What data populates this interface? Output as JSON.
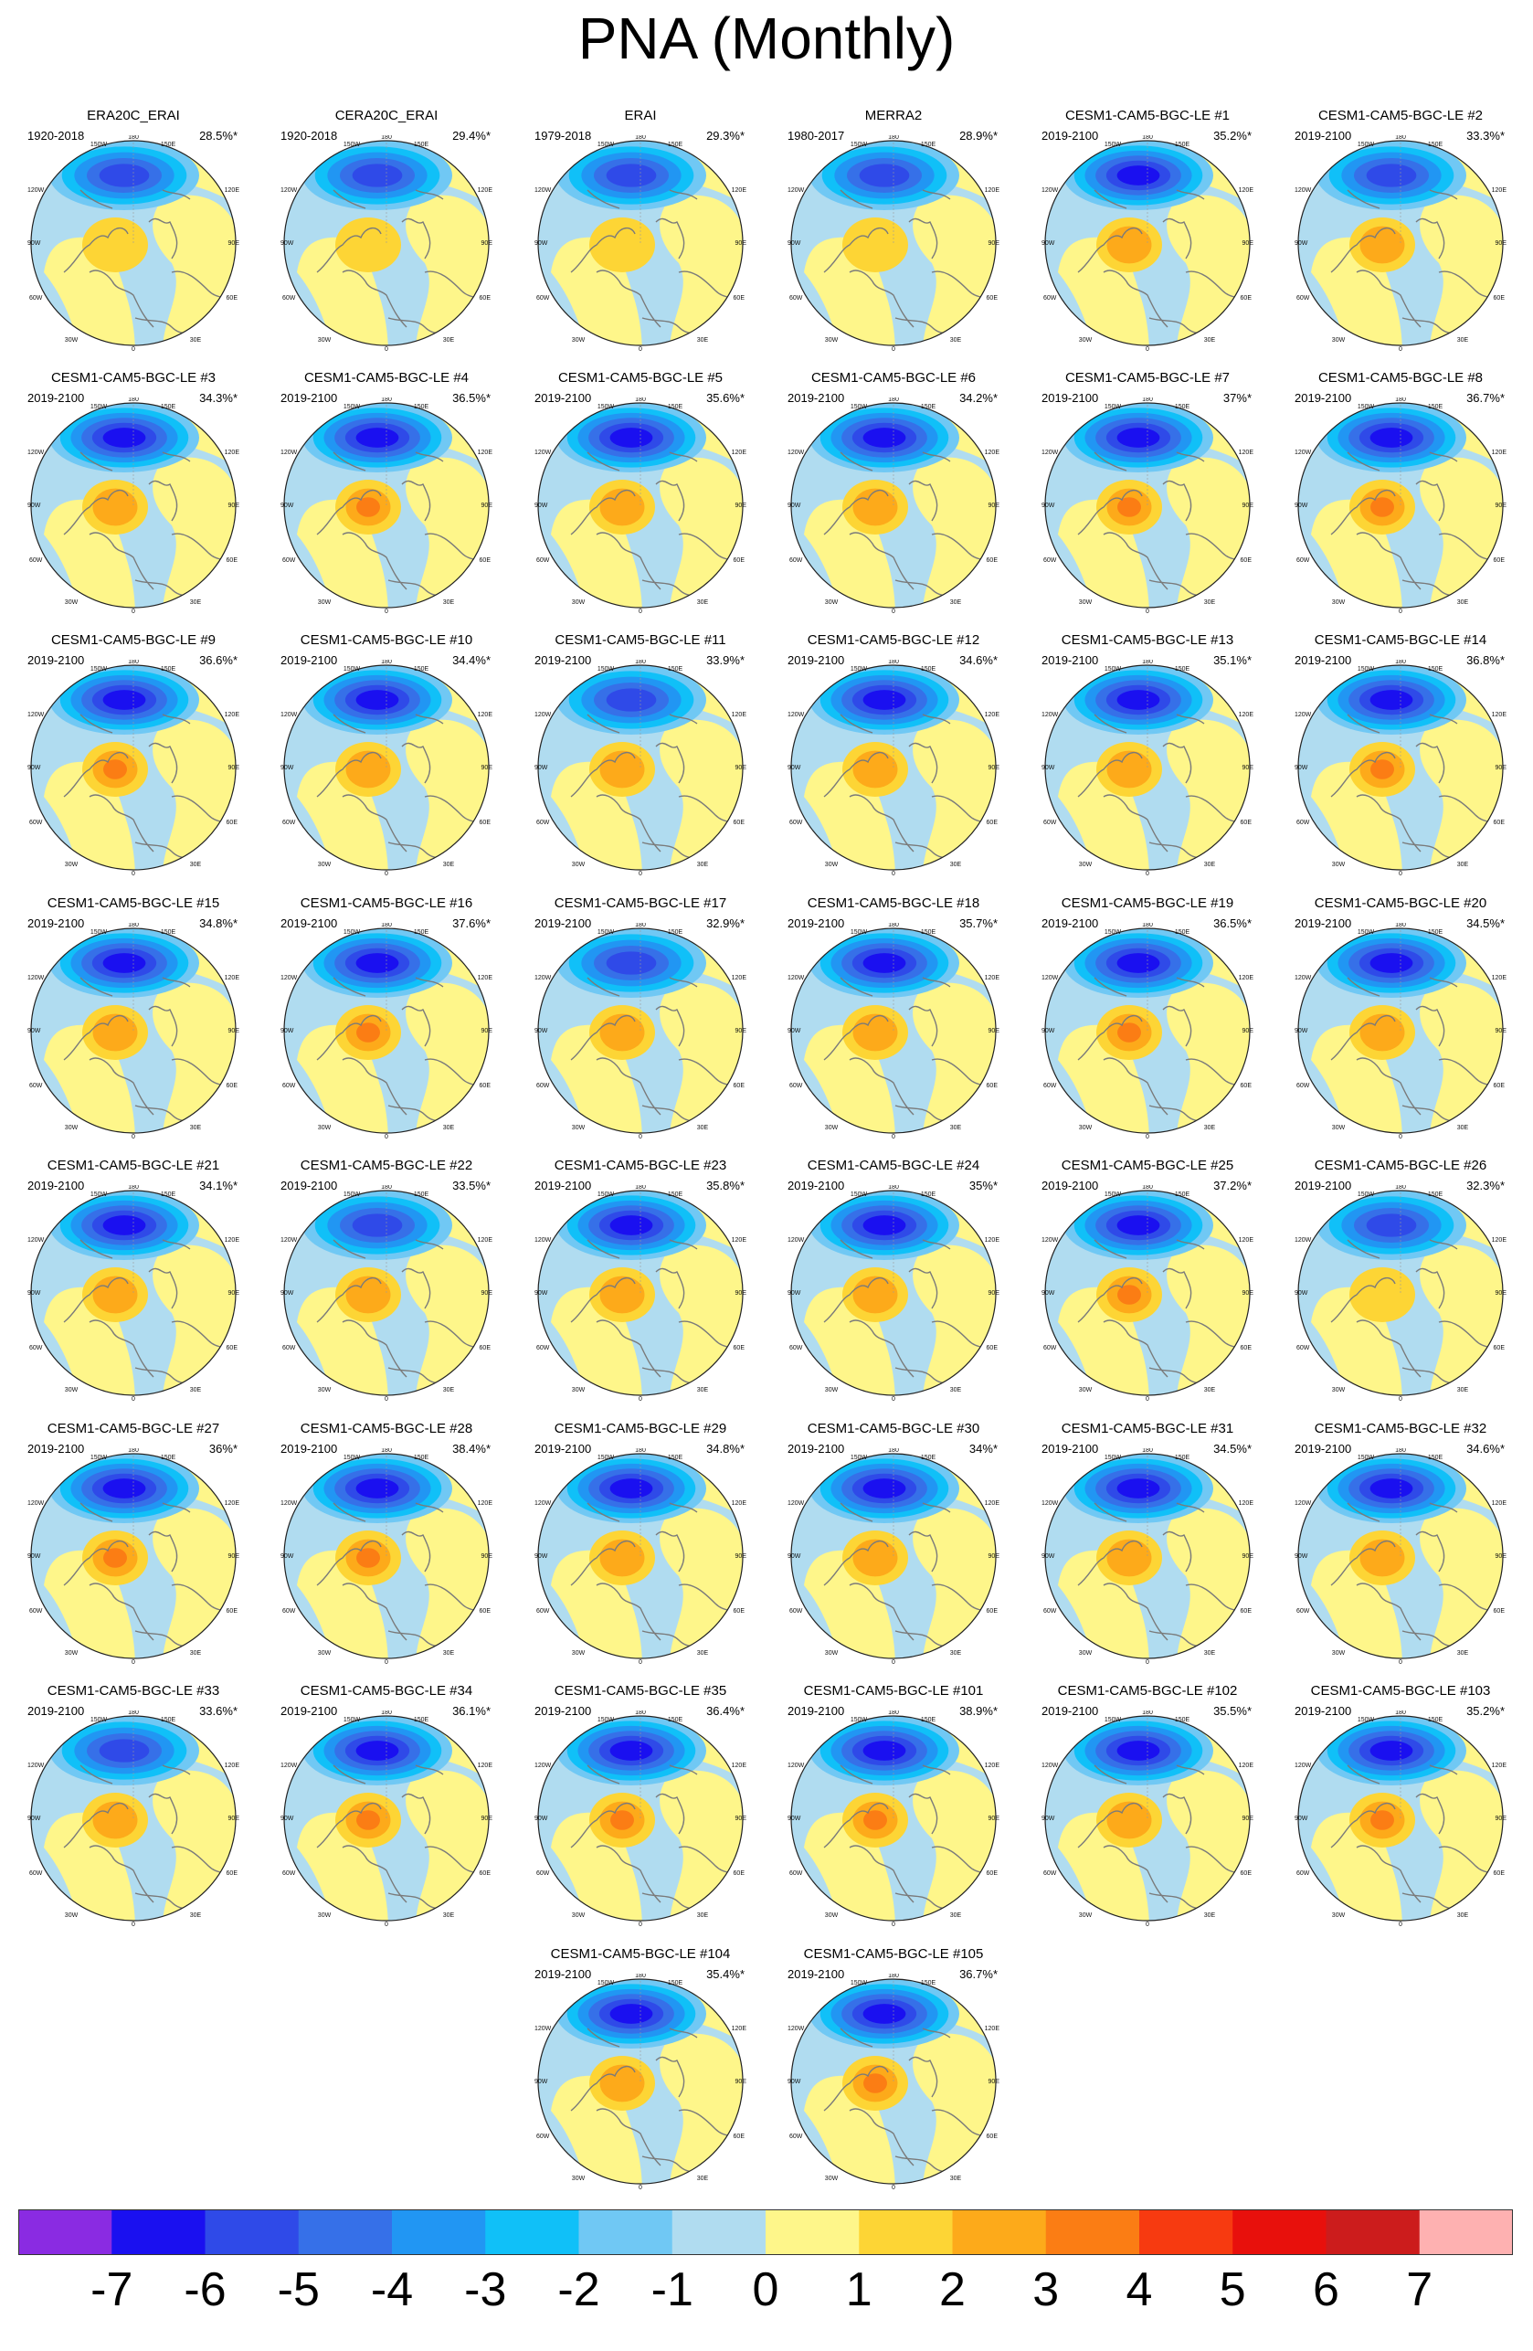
{
  "title": "PNA (Monthly)",
  "map_labels": {
    "top": "180",
    "top_left": "150W",
    "top_right": "150E",
    "upper_left": "120W",
    "upper_right": "120E",
    "left": "90W",
    "right": "90E",
    "lower_left": "60W",
    "lower_right": "60E",
    "bottom_left": "30W",
    "bottom_right": "30E",
    "bottom": "0"
  },
  "panels": [
    {
      "title": "ERA20C_ERAI",
      "period": "1920-2018",
      "pct": "28.5%*",
      "strength": 0.8
    },
    {
      "title": "CERA20C_ERAI",
      "period": "1920-2018",
      "pct": "29.4%*",
      "strength": 0.82
    },
    {
      "title": "ERAI",
      "period": "1979-2018",
      "pct": "29.3%*",
      "strength": 0.82
    },
    {
      "title": "MERRA2",
      "period": "1980-2017",
      "pct": "28.9%*",
      "strength": 0.8
    },
    {
      "title": "CESM1-CAM5-BGC-LE #1",
      "period": "2019-2100",
      "pct": "35.2%*",
      "strength": 0.95
    },
    {
      "title": "CESM1-CAM5-BGC-LE #2",
      "period": "2019-2100",
      "pct": "33.3%*",
      "strength": 0.9
    },
    {
      "title": "CESM1-CAM5-BGC-LE #3",
      "period": "2019-2100",
      "pct": "34.3%*",
      "strength": 0.93
    },
    {
      "title": "CESM1-CAM5-BGC-LE #4",
      "period": "2019-2100",
      "pct": "36.5%*",
      "strength": 0.97
    },
    {
      "title": "CESM1-CAM5-BGC-LE #5",
      "period": "2019-2100",
      "pct": "35.6%*",
      "strength": 0.95
    },
    {
      "title": "CESM1-CAM5-BGC-LE #6",
      "period": "2019-2100",
      "pct": "34.2%*",
      "strength": 0.93
    },
    {
      "title": "CESM1-CAM5-BGC-LE #7",
      "period": "2019-2100",
      "pct": "37%*",
      "strength": 1.0
    },
    {
      "title": "CESM1-CAM5-BGC-LE #8",
      "period": "2019-2100",
      "pct": "36.7%*",
      "strength": 1.0
    },
    {
      "title": "CESM1-CAM5-BGC-LE #9",
      "period": "2019-2100",
      "pct": "36.6%*",
      "strength": 0.98
    },
    {
      "title": "CESM1-CAM5-BGC-LE #10",
      "period": "2019-2100",
      "pct": "34.4%*",
      "strength": 0.93
    },
    {
      "title": "CESM1-CAM5-BGC-LE #11",
      "period": "2019-2100",
      "pct": "33.9%*",
      "strength": 0.92
    },
    {
      "title": "CESM1-CAM5-BGC-LE #12",
      "period": "2019-2100",
      "pct": "34.6%*",
      "strength": 0.94
    },
    {
      "title": "CESM1-CAM5-BGC-LE #13",
      "period": "2019-2100",
      "pct": "35.1%*",
      "strength": 0.95
    },
    {
      "title": "CESM1-CAM5-BGC-LE #14",
      "period": "2019-2100",
      "pct": "36.8%*",
      "strength": 0.98
    },
    {
      "title": "CESM1-CAM5-BGC-LE #15",
      "period": "2019-2100",
      "pct": "34.8%*",
      "strength": 0.94
    },
    {
      "title": "CESM1-CAM5-BGC-LE #16",
      "period": "2019-2100",
      "pct": "37.6%*",
      "strength": 1.0
    },
    {
      "title": "CESM1-CAM5-BGC-LE #17",
      "period": "2019-2100",
      "pct": "32.9%*",
      "strength": 0.9
    },
    {
      "title": "CESM1-CAM5-BGC-LE #18",
      "period": "2019-2100",
      "pct": "35.7%*",
      "strength": 0.96
    },
    {
      "title": "CESM1-CAM5-BGC-LE #19",
      "period": "2019-2100",
      "pct": "36.5%*",
      "strength": 0.98
    },
    {
      "title": "CESM1-CAM5-BGC-LE #20",
      "period": "2019-2100",
      "pct": "34.5%*",
      "strength": 0.93
    },
    {
      "title": "CESM1-CAM5-BGC-LE #21",
      "period": "2019-2100",
      "pct": "34.1%*",
      "strength": 0.93
    },
    {
      "title": "CESM1-CAM5-BGC-LE #22",
      "period": "2019-2100",
      "pct": "33.5%*",
      "strength": 0.92
    },
    {
      "title": "CESM1-CAM5-BGC-LE #23",
      "period": "2019-2100",
      "pct": "35.8%*",
      "strength": 0.96
    },
    {
      "title": "CESM1-CAM5-BGC-LE #24",
      "period": "2019-2100",
      "pct": "35%*",
      "strength": 0.95
    },
    {
      "title": "CESM1-CAM5-BGC-LE #25",
      "period": "2019-2100",
      "pct": "37.2%*",
      "strength": 0.99
    },
    {
      "title": "CESM1-CAM5-BGC-LE #26",
      "period": "2019-2100",
      "pct": "32.3%*",
      "strength": 0.88
    },
    {
      "title": "CESM1-CAM5-BGC-LE #27",
      "period": "2019-2100",
      "pct": "36%*",
      "strength": 0.97
    },
    {
      "title": "CESM1-CAM5-BGC-LE #28",
      "period": "2019-2100",
      "pct": "38.4%*",
      "strength": 1.0
    },
    {
      "title": "CESM1-CAM5-BGC-LE #29",
      "period": "2019-2100",
      "pct": "34.8%*",
      "strength": 0.94
    },
    {
      "title": "CESM1-CAM5-BGC-LE #30",
      "period": "2019-2100",
      "pct": "34%*",
      "strength": 0.93
    },
    {
      "title": "CESM1-CAM5-BGC-LE #31",
      "period": "2019-2100",
      "pct": "34.5%*",
      "strength": 0.93
    },
    {
      "title": "CESM1-CAM5-BGC-LE #32",
      "period": "2019-2100",
      "pct": "34.6%*",
      "strength": 0.94
    },
    {
      "title": "CESM1-CAM5-BGC-LE #33",
      "period": "2019-2100",
      "pct": "33.6%*",
      "strength": 0.92
    },
    {
      "title": "CESM1-CAM5-BGC-LE #34",
      "period": "2019-2100",
      "pct": "36.1%*",
      "strength": 0.97
    },
    {
      "title": "CESM1-CAM5-BGC-LE #35",
      "period": "2019-2100",
      "pct": "36.4%*",
      "strength": 0.97
    },
    {
      "title": "CESM1-CAM5-BGC-LE #101",
      "period": "2019-2100",
      "pct": "38.9%*",
      "strength": 1.0
    },
    {
      "title": "CESM1-CAM5-BGC-LE #102",
      "period": "2019-2100",
      "pct": "35.5%*",
      "strength": 0.96
    },
    {
      "title": "CESM1-CAM5-BGC-LE #103",
      "period": "2019-2100",
      "pct": "35.2%*",
      "strength": 0.98
    },
    {
      "title": "CESM1-CAM5-BGC-LE #104",
      "period": "2019-2100",
      "pct": "35.4%*",
      "strength": 0.95
    },
    {
      "title": "CESM1-CAM5-BGC-LE #105",
      "period": "2019-2100",
      "pct": "36.7%*",
      "strength": 0.98
    }
  ],
  "colorbar": {
    "colors": [
      "#8a2be2",
      "#1a10f0",
      "#2f4ae8",
      "#3670e8",
      "#2196f3",
      "#10c0f8",
      "#70c8f4",
      "#b0dcf0",
      "#fef68a",
      "#fdd535",
      "#fdaa1a",
      "#fb7d14",
      "#f73a10",
      "#e8100c",
      "#cc1c1c",
      "#feb1b1"
    ],
    "labels": [
      "-7",
      "-6",
      "-5",
      "-4",
      "-3",
      "-2",
      "-1",
      "0",
      "1",
      "2",
      "3",
      "4",
      "5",
      "6",
      "7"
    ]
  },
  "palette": {
    "neg": [
      "#b0dcf0",
      "#70c8f4",
      "#10c0f8",
      "#2196f3",
      "#3670e8",
      "#2f4ae8",
      "#1a10f0"
    ],
    "pos": [
      "#fef68a",
      "#fdd535",
      "#fdaa1a",
      "#fb7d14"
    ],
    "coast": "#7a7a7a"
  }
}
